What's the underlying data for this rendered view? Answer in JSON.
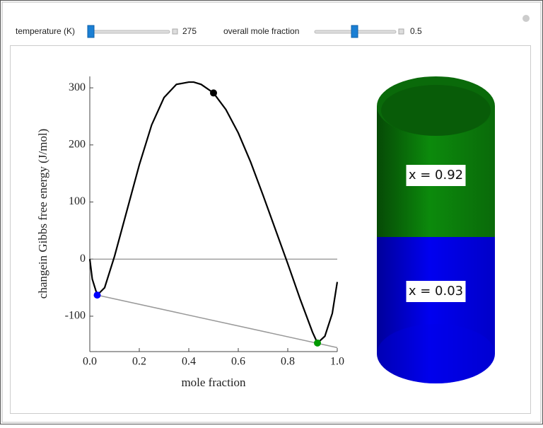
{
  "controls": [
    {
      "label": "temperature (K)",
      "value": 275
    },
    {
      "label": "overall mole fraction",
      "value": 0.5
    }
  ],
  "chart_data": {
    "type": "line",
    "xlabel": "mole fraction",
    "ylabel": "changein Gibbs free energy (J/mol)",
    "xlim": [
      0,
      1
    ],
    "ylim": [
      -162,
      320
    ],
    "xticks": [
      {
        "value": 0,
        "label": "0.0"
      },
      0.2,
      0.4,
      0.6,
      0.8,
      {
        "value": 1,
        "label": "1.0"
      }
    ],
    "yticks": [
      -100,
      0,
      100,
      200,
      300
    ],
    "series": [
      {
        "color": "#000000",
        "x": [
          0,
          0.01,
          0.03,
          0.06,
          0.1,
          0.15,
          0.2,
          0.25,
          0.3,
          0.35,
          0.4,
          0.42,
          0.45,
          0.5,
          0.55,
          0.6,
          0.65,
          0.7,
          0.75,
          0.8,
          0.85,
          0.9,
          0.92,
          0.95,
          0.98,
          1.0
        ],
        "values": [
          0,
          -35,
          -63,
          -50,
          5,
          85,
          165,
          235,
          283,
          306,
          310,
          310,
          306,
          291,
          262,
          221,
          170,
          112,
          52,
          -8,
          -70,
          -128,
          -147,
          -135,
          -95,
          -40
        ]
      },
      {
        "color": "#999999",
        "x": [
          0.03,
          1.0
        ],
        "values": [
          -63,
          -155
        ]
      }
    ],
    "points": [
      {
        "x": 0.03,
        "y": -63,
        "color": "#0000ff"
      },
      {
        "x": 0.92,
        "y": -147,
        "color": "#009900"
      },
      {
        "x": 0.5,
        "y": 291,
        "color": "#000000"
      }
    ]
  },
  "phases": [
    {
      "label": "x = 0.92",
      "value": 0.92,
      "color": "#0a7d0a"
    },
    {
      "label": "x = 0.03",
      "value": 0.03,
      "color": "#0000e6"
    }
  ]
}
